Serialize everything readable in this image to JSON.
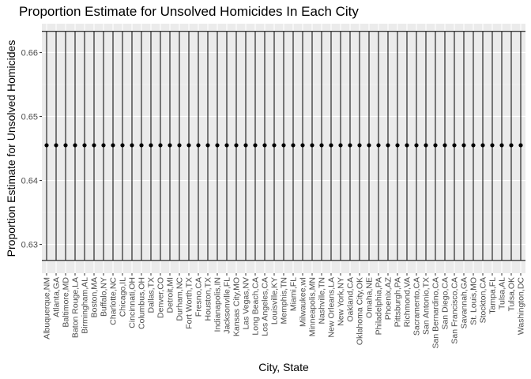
{
  "chart_data": {
    "type": "scatter",
    "title": "Proportion Estimate for Unsolved Homicides In Each City",
    "xlabel": "City, State",
    "ylabel": "Proportion Estimate for Unsolved Homicides",
    "ylim": [
      0.6255,
      0.6645
    ],
    "yticks": [
      0.63,
      0.64,
      0.65,
      0.66
    ],
    "ytick_labels": [
      "0.63",
      "0.64",
      "0.65",
      "0.66"
    ],
    "grid": true,
    "categories": [
      "Albuquerque,NM",
      "Atlanta,GA",
      "Baltimore,MD",
      "Baton Rouge,LA",
      "Birmingham,AL",
      "Boston,MA",
      "Buffalo,NY",
      "Charlotte,NC",
      "Chicago,IL",
      "Cincinnati,OH",
      "Columbus,OH",
      "Dallas,TX",
      "Denver,CO",
      "Detroit,MI",
      "Durham,NC",
      "Fort Worth,TX",
      "Fresno,CA",
      "Houston,TX",
      "Indianapolis,IN",
      "Jacksonville,FL",
      "Kansas City,MO",
      "Las Vegas,NV",
      "Long Beach,CA",
      "Los Angeles,CA",
      "Louisville,KY",
      "Memphis,TN",
      "Miami,FL",
      "Milwaukee,wI",
      "Minneapolis,MN",
      "Nashville,TN",
      "New Orleans,LA",
      "New York,NY",
      "Oakland,CA",
      "Oklahoma City,OK",
      "Omaha,NE",
      "Philadelphia,PA",
      "Phoenix,AZ",
      "Pittsburgh,PA",
      "Richmond,VA",
      "Sacramento,CA",
      "San Antonio,TX",
      "San Bernardino,CA",
      "San Diego,CA",
      "San Francisco,CA",
      "Savannah,GA",
      "St. Louis,MO",
      "Stockton,CA",
      "Tampa,FL",
      "Tulsa,AL",
      "Tulsa,OK",
      "Washington,DC"
    ],
    "estimate": 0.6455,
    "conf_low": 0.6275,
    "conf_high": 0.6633,
    "colors": {
      "panel": "#ebebeb",
      "grid_major": "#ffffff",
      "grid_minor": "#f5f5f5",
      "ink": "#000000",
      "tick_text": "#4d4d4d"
    }
  }
}
